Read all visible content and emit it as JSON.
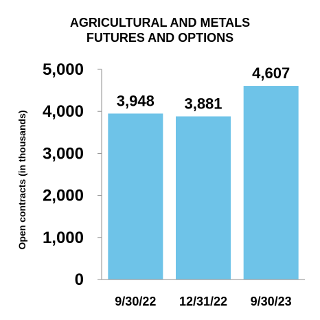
{
  "chart_data": {
    "type": "bar",
    "title_lines": [
      "AGRICULTURAL AND METALS",
      "FUTURES AND OPTIONS"
    ],
    "ylabel": "Open contracts (in thousands)",
    "xlabel": "",
    "categories": [
      "9/30/22",
      "12/31/22",
      "9/30/23"
    ],
    "values": [
      3948,
      3881,
      4607
    ],
    "value_labels": [
      "3,948",
      "3,881",
      "4,607"
    ],
    "ylim": [
      0,
      5000
    ],
    "yticks": [
      0,
      1000,
      2000,
      3000,
      4000,
      5000
    ],
    "ytick_labels": [
      "0",
      "1,000",
      "2,000",
      "3,000",
      "4,000",
      "5,000"
    ],
    "bar_color": "#6EC3E8",
    "grid": false,
    "legend": "none"
  }
}
